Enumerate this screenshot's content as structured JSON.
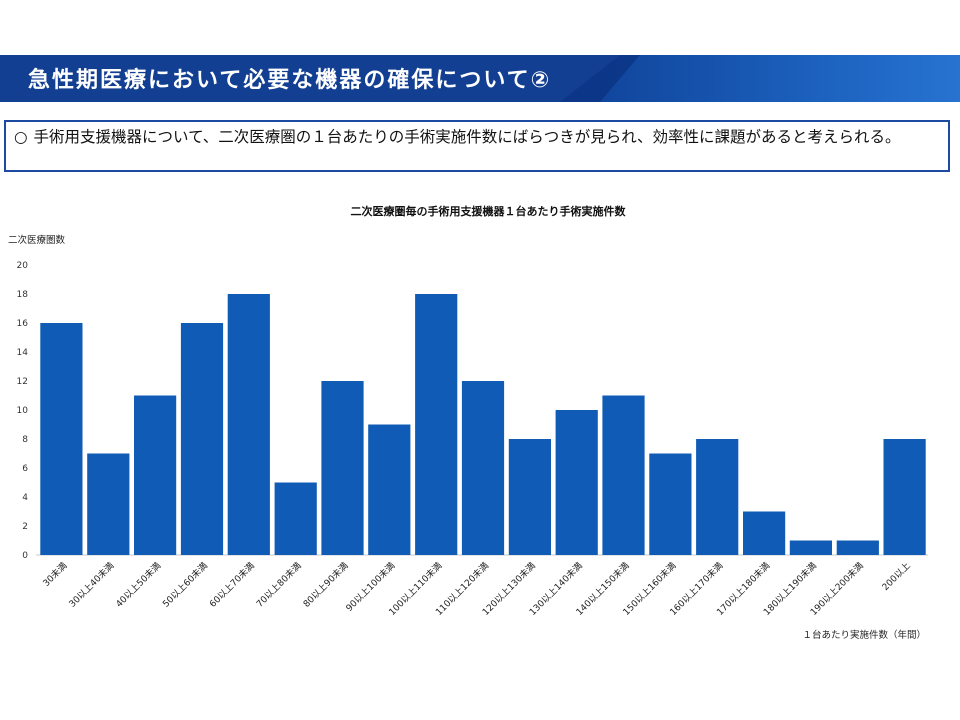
{
  "slide": {
    "title": "急性期医療において必要な機器の確保について②",
    "note_bullet": "○",
    "note_text": "手術用支援機器について、二次医療圏の１台あたりの手術実施件数にばらつきが見られ、効率性に課題があると考えられる。"
  },
  "chart_data": {
    "type": "bar",
    "title": "二次医療圏毎の手術用支援機器１台あたり手術実施件数",
    "ylabel": "二次医療圏数",
    "xlabel": "１台あたり実施件数（年間）",
    "ylim": [
      0,
      20
    ],
    "yticks": [
      0,
      2,
      4,
      6,
      8,
      10,
      12,
      14,
      16,
      18,
      20
    ],
    "grid": false,
    "categories": [
      "30未満",
      "30以上40未満",
      "40以上50未満",
      "50以上60未満",
      "60以上70未満",
      "70以上80未満",
      "80以上90未満",
      "90以上100未満",
      "100以上110未満",
      "110以上120未満",
      "120以上130未満",
      "130以上140未満",
      "140以上150未満",
      "150以上160未満",
      "160以上170未満",
      "170以上180未満",
      "180以上190未満",
      "190以上200未満",
      "200以上"
    ],
    "values": [
      16,
      7,
      11,
      16,
      18,
      5,
      12,
      9,
      18,
      12,
      8,
      10,
      11,
      7,
      8,
      3,
      1,
      1,
      8
    ],
    "bar_color": "#0f5bb5"
  }
}
